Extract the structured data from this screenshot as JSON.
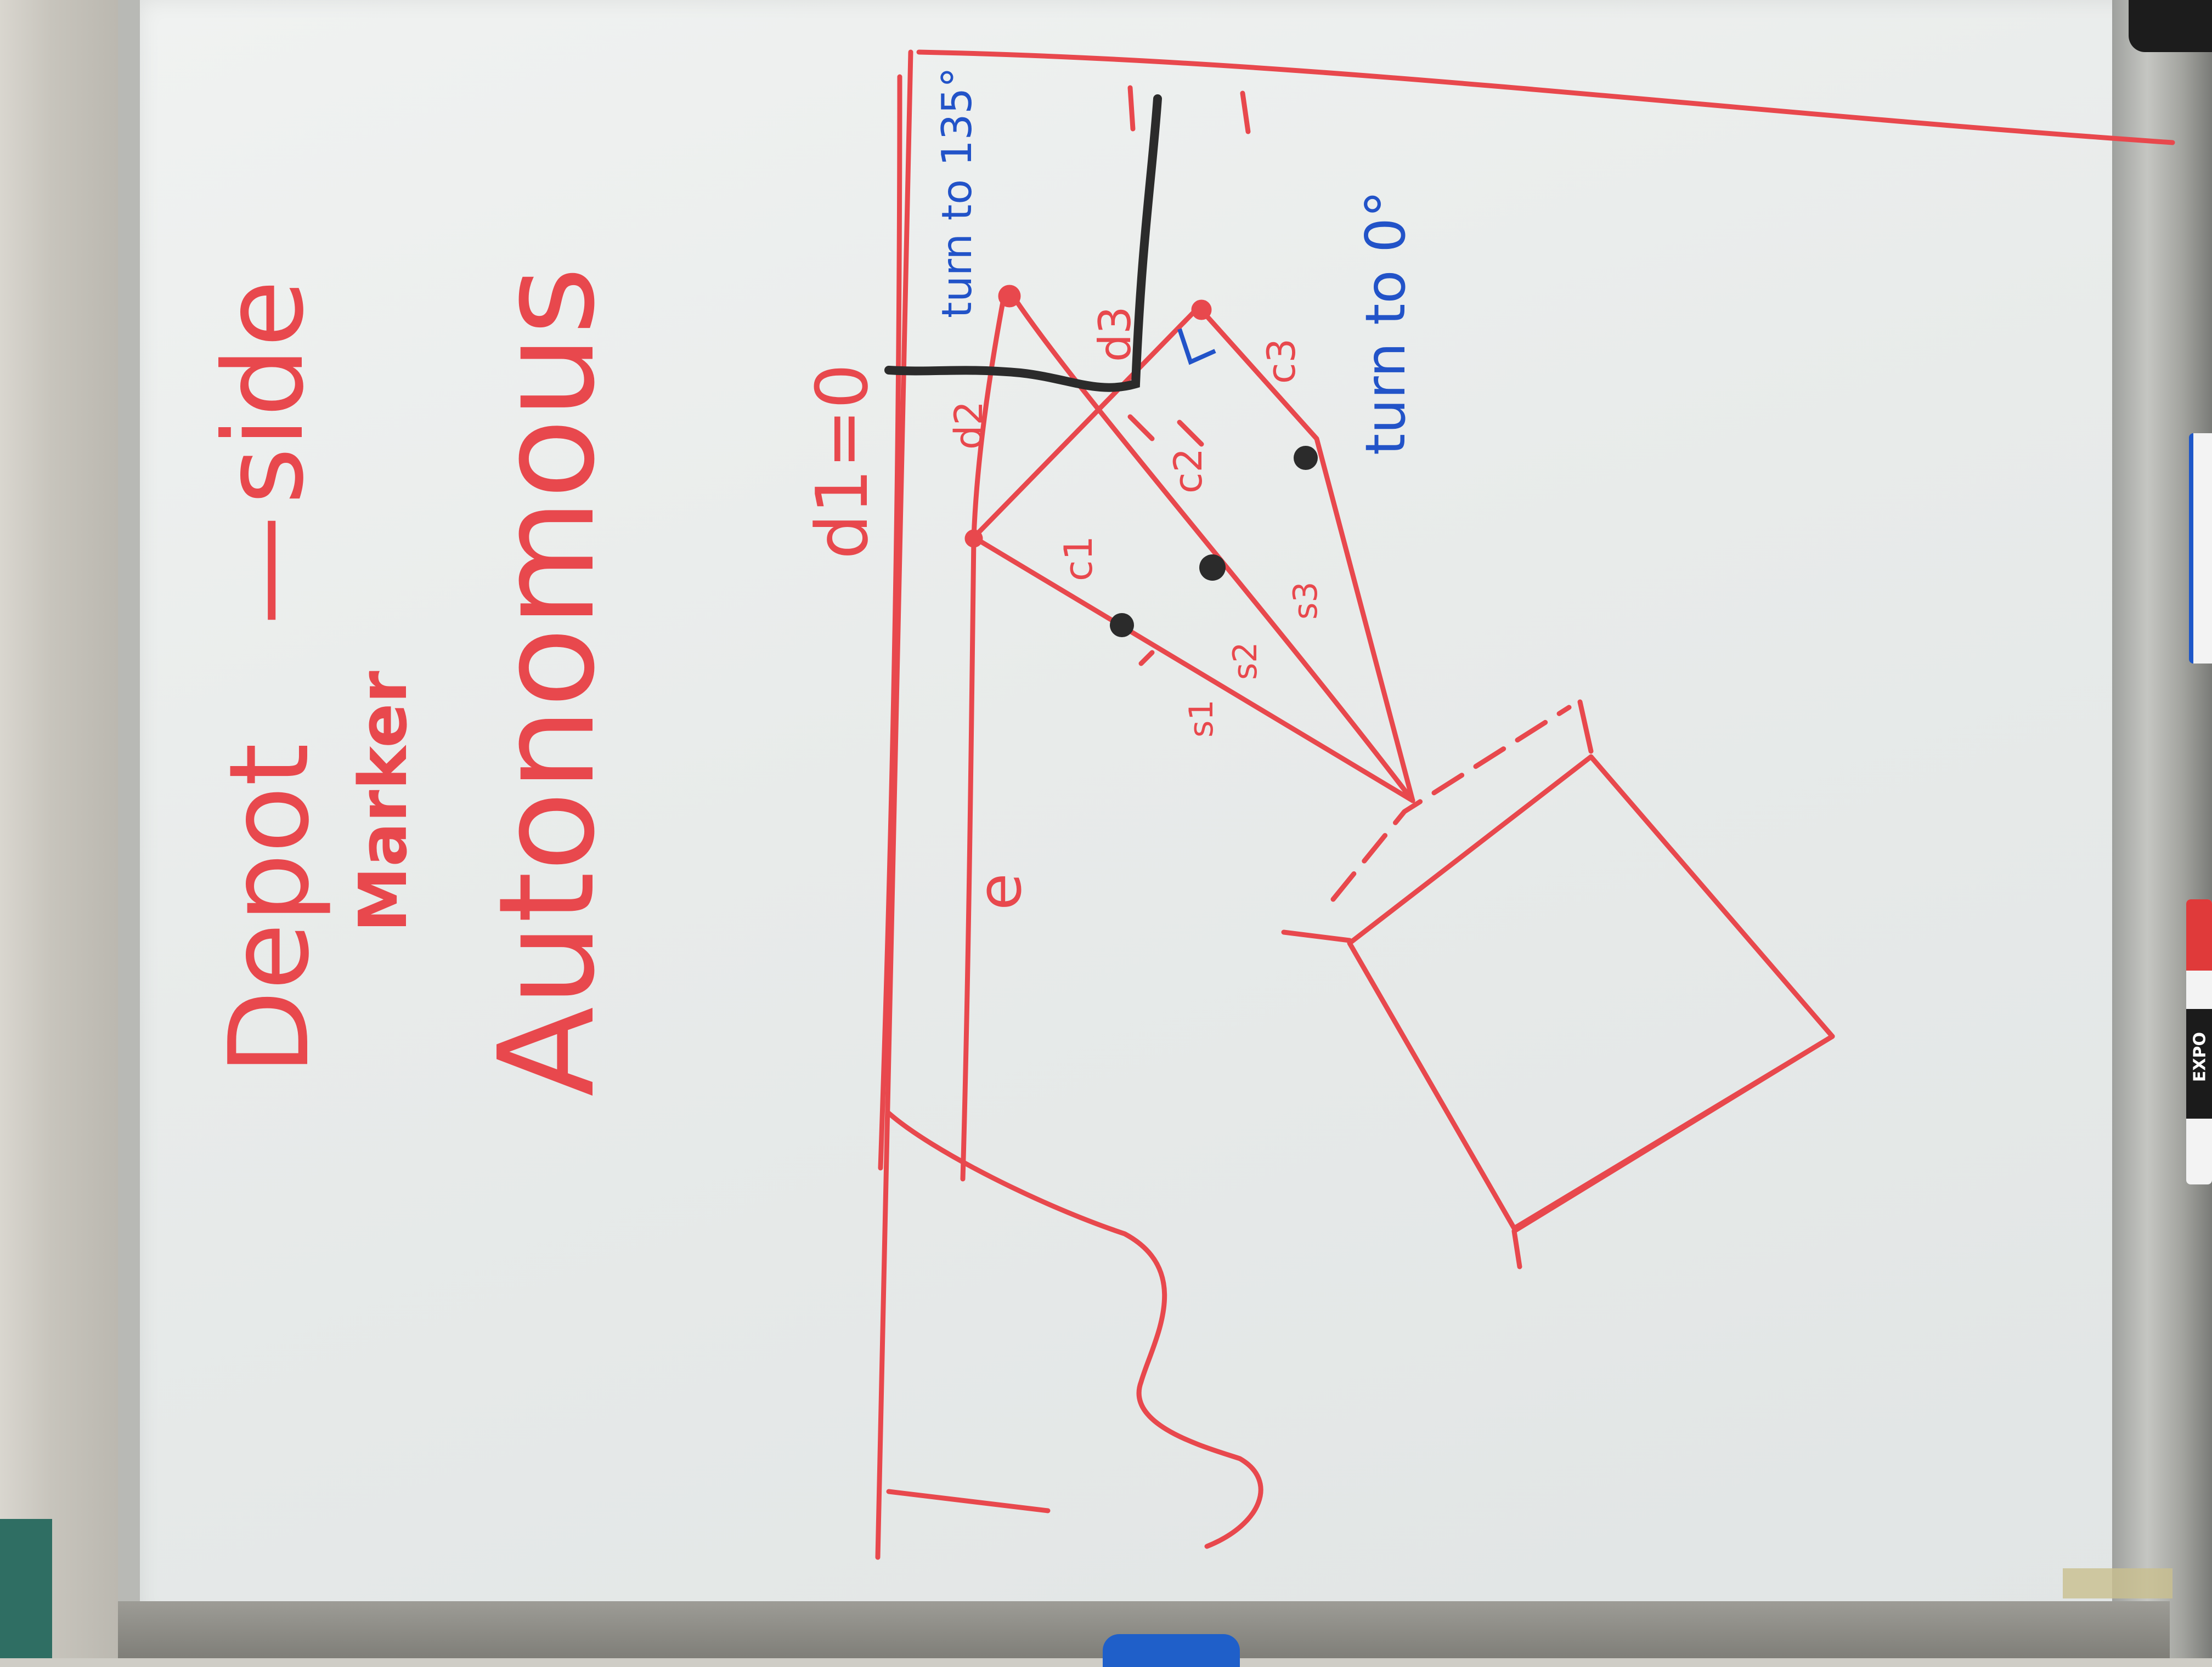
{
  "board": {
    "title_depot": "Depot",
    "title_dash": "—",
    "title_side": "side",
    "subtitle_marker": "Marker",
    "heading_autonomous": "Autonomous"
  },
  "annotations": {
    "d1": "d1=0",
    "d2": "d2",
    "d3": "d3",
    "c1": "c1",
    "c2": "c2",
    "c3": "c3",
    "s1": "s1",
    "s2": "s2",
    "s3": "s3",
    "turn_135": "turn to 135°",
    "turn_0": "turn to 0°",
    "e_label": "e"
  },
  "markers": {
    "brand_label": "EXPO"
  },
  "colors": {
    "red_ink": "#e8484d",
    "blue_ink": "#2253c8",
    "black_ink": "#2b2b2b",
    "board": "#eceeed"
  }
}
